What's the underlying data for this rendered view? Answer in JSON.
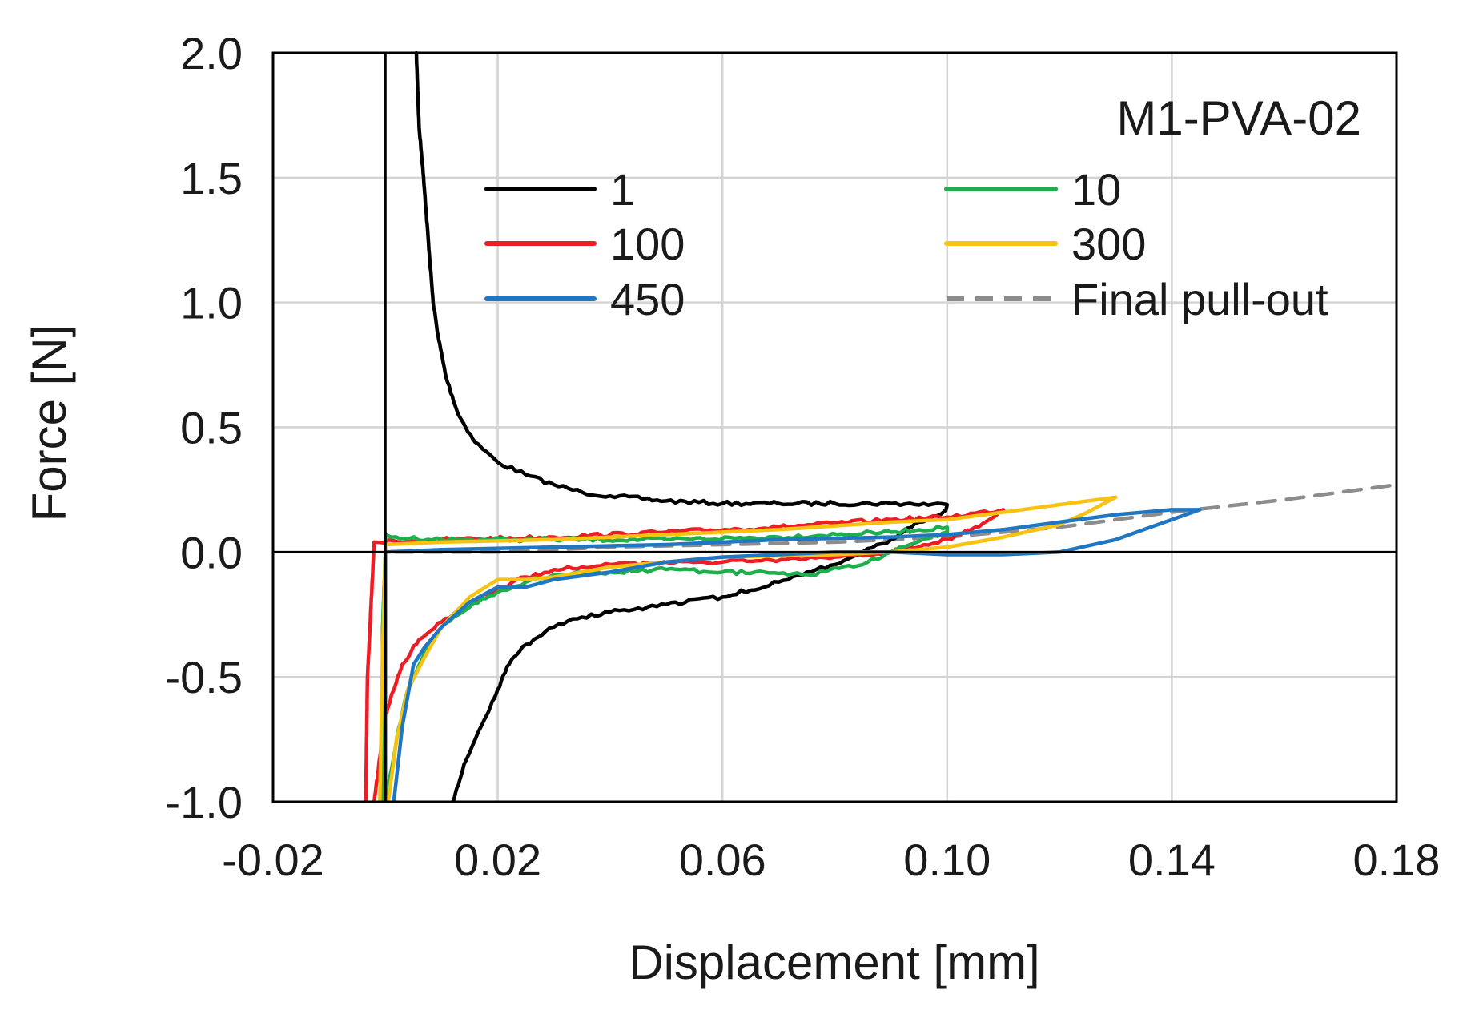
{
  "chart_data": {
    "type": "line",
    "title": "M1-PVA-02",
    "xlabel": "Displacement [mm]",
    "ylabel": "Force [N]",
    "xlim": [
      -0.02,
      0.18
    ],
    "ylim": [
      -1.0,
      2.0
    ],
    "grid": true,
    "legend_position": "upper-right",
    "x_ticks": [
      -0.02,
      0.02,
      0.06,
      0.1,
      0.14,
      0.18
    ],
    "x_tick_labels": [
      "-0.02",
      "0.02",
      "0.06",
      "0.10",
      "0.14",
      "0.18"
    ],
    "y_ticks": [
      -1.0,
      -0.5,
      0.0,
      0.5,
      1.0,
      1.5,
      2.0
    ],
    "y_tick_labels": [
      "-1.0",
      "-0.5",
      "0.0",
      "0.5",
      "1.0",
      "1.5",
      "2.0"
    ],
    "series": [
      {
        "name": "1",
        "color": "#000000",
        "dash": "solid",
        "noisy": true,
        "points": [
          [
            0.0055,
            2.0
          ],
          [
            0.006,
            1.7
          ],
          [
            0.0068,
            1.5
          ],
          [
            0.0078,
            1.2
          ],
          [
            0.0085,
            1.0
          ],
          [
            0.0095,
            0.85
          ],
          [
            0.0108,
            0.7
          ],
          [
            0.013,
            0.55
          ],
          [
            0.016,
            0.44
          ],
          [
            0.02,
            0.36
          ],
          [
            0.025,
            0.31
          ],
          [
            0.03,
            0.27
          ],
          [
            0.035,
            0.24
          ],
          [
            0.04,
            0.225
          ],
          [
            0.05,
            0.205
          ],
          [
            0.06,
            0.195
          ],
          [
            0.07,
            0.195
          ],
          [
            0.08,
            0.195
          ],
          [
            0.09,
            0.195
          ],
          [
            0.1,
            0.19
          ],
          [
            0.0998,
            0.17
          ],
          [
            0.095,
            0.12
          ],
          [
            0.09,
            0.05
          ],
          [
            0.085,
            0.0
          ],
          [
            0.08,
            -0.05
          ],
          [
            0.07,
            -0.12
          ],
          [
            0.06,
            -0.18
          ],
          [
            0.05,
            -0.21
          ],
          [
            0.04,
            -0.24
          ],
          [
            0.035,
            -0.26
          ],
          [
            0.03,
            -0.3
          ],
          [
            0.025,
            -0.37
          ],
          [
            0.022,
            -0.45
          ],
          [
            0.02,
            -0.55
          ],
          [
            0.017,
            -0.7
          ],
          [
            0.014,
            -0.85
          ],
          [
            0.012,
            -1.0
          ]
        ]
      },
      {
        "name": "10",
        "color": "#1fae4b",
        "dash": "solid",
        "noisy": true,
        "points": [
          [
            -0.0005,
            -1.0
          ],
          [
            -0.0005,
            -0.3
          ],
          [
            0.0,
            0.0
          ],
          [
            0.0,
            0.07
          ],
          [
            0.001,
            0.06
          ],
          [
            0.01,
            0.05
          ],
          [
            0.03,
            0.05
          ],
          [
            0.05,
            0.05
          ],
          [
            0.07,
            0.06
          ],
          [
            0.09,
            0.08
          ],
          [
            0.1,
            0.1
          ],
          [
            0.1,
            0.08
          ],
          [
            0.09,
            0.0
          ],
          [
            0.085,
            -0.05
          ],
          [
            0.075,
            -0.09
          ],
          [
            0.06,
            -0.08
          ],
          [
            0.05,
            -0.07
          ],
          [
            0.04,
            -0.08
          ],
          [
            0.03,
            -0.09
          ],
          [
            0.025,
            -0.12
          ],
          [
            0.02,
            -0.16
          ],
          [
            0.015,
            -0.22
          ],
          [
            0.01,
            -0.3
          ],
          [
            0.007,
            -0.4
          ],
          [
            0.004,
            -0.55
          ],
          [
            0.002,
            -0.75
          ],
          [
            0.0,
            -1.0
          ]
        ]
      },
      {
        "name": "100",
        "color": "#ee1c24",
        "dash": "solid",
        "noisy": true,
        "points": [
          [
            -0.0035,
            -1.0
          ],
          [
            -0.0032,
            -0.5
          ],
          [
            -0.002,
            0.04
          ],
          [
            0.01,
            0.05
          ],
          [
            0.03,
            0.06
          ],
          [
            0.05,
            0.08
          ],
          [
            0.07,
            0.1
          ],
          [
            0.09,
            0.13
          ],
          [
            0.1,
            0.14
          ],
          [
            0.11,
            0.17
          ],
          [
            0.105,
            0.1
          ],
          [
            0.1,
            0.05
          ],
          [
            0.09,
            0.0
          ],
          [
            0.08,
            -0.02
          ],
          [
            0.06,
            -0.04
          ],
          [
            0.04,
            -0.05
          ],
          [
            0.03,
            -0.07
          ],
          [
            0.025,
            -0.1
          ],
          [
            0.02,
            -0.15
          ],
          [
            0.015,
            -0.2
          ],
          [
            0.01,
            -0.28
          ],
          [
            0.006,
            -0.35
          ],
          [
            0.003,
            -0.45
          ],
          [
            0.0,
            -0.65
          ],
          [
            -0.002,
            -1.0
          ]
        ]
      },
      {
        "name": "300",
        "color": "#f8c210",
        "dash": "solid",
        "noisy": false,
        "points": [
          [
            -0.001,
            -1.0
          ],
          [
            -0.0005,
            -0.4
          ],
          [
            0.0,
            0.0
          ],
          [
            0.0,
            0.03
          ],
          [
            0.01,
            0.04
          ],
          [
            0.03,
            0.05
          ],
          [
            0.05,
            0.07
          ],
          [
            0.07,
            0.09
          ],
          [
            0.09,
            0.12
          ],
          [
            0.1,
            0.13
          ],
          [
            0.11,
            0.16
          ],
          [
            0.12,
            0.19
          ],
          [
            0.13,
            0.22
          ],
          [
            0.125,
            0.16
          ],
          [
            0.12,
            0.11
          ],
          [
            0.11,
            0.06
          ],
          [
            0.1,
            0.02
          ],
          [
            0.09,
            0.0
          ],
          [
            0.08,
            -0.01
          ],
          [
            0.06,
            -0.02
          ],
          [
            0.04,
            -0.06
          ],
          [
            0.03,
            -0.1
          ],
          [
            0.025,
            -0.11
          ],
          [
            0.02,
            -0.11
          ],
          [
            0.015,
            -0.18
          ],
          [
            0.01,
            -0.3
          ],
          [
            0.007,
            -0.42
          ],
          [
            0.004,
            -0.55
          ],
          [
            0.002,
            -0.75
          ],
          [
            0.0005,
            -1.0
          ]
        ]
      },
      {
        "name": "450",
        "color": "#1f77c4",
        "dash": "solid",
        "noisy": false,
        "points": [
          [
            0.0,
            -1.0
          ],
          [
            0.0,
            -0.2
          ],
          [
            0.0,
            0.0
          ],
          [
            0.01,
            0.01
          ],
          [
            0.03,
            0.02
          ],
          [
            0.05,
            0.03
          ],
          [
            0.07,
            0.05
          ],
          [
            0.09,
            0.06
          ],
          [
            0.1,
            0.07
          ],
          [
            0.11,
            0.09
          ],
          [
            0.12,
            0.12
          ],
          [
            0.13,
            0.15
          ],
          [
            0.14,
            0.17
          ],
          [
            0.145,
            0.17
          ],
          [
            0.14,
            0.13
          ],
          [
            0.135,
            0.09
          ],
          [
            0.13,
            0.05
          ],
          [
            0.12,
            0.0
          ],
          [
            0.11,
            -0.01
          ],
          [
            0.1,
            -0.01
          ],
          [
            0.09,
            0.0
          ],
          [
            0.08,
            0.0
          ],
          [
            0.07,
            -0.01
          ],
          [
            0.06,
            -0.02
          ],
          [
            0.05,
            -0.04
          ],
          [
            0.04,
            -0.08
          ],
          [
            0.03,
            -0.11
          ],
          [
            0.025,
            -0.14
          ],
          [
            0.02,
            -0.14
          ],
          [
            0.015,
            -0.2
          ],
          [
            0.01,
            -0.3
          ],
          [
            0.007,
            -0.38
          ],
          [
            0.005,
            -0.45
          ],
          [
            0.003,
            -0.7
          ],
          [
            0.0015,
            -1.0
          ]
        ]
      },
      {
        "name": "Final pull-out",
        "color": "#8c8c8c",
        "dash": "dashed",
        "noisy": false,
        "points": [
          [
            0.0,
            -1.0
          ],
          [
            0.0,
            0.0
          ],
          [
            0.02,
            0.0
          ],
          [
            0.04,
            0.02
          ],
          [
            0.06,
            0.03
          ],
          [
            0.08,
            0.04
          ],
          [
            0.1,
            0.06
          ],
          [
            0.12,
            0.1
          ],
          [
            0.14,
            0.16
          ],
          [
            0.16,
            0.21
          ],
          [
            0.18,
            0.27
          ]
        ]
      }
    ],
    "legend": {
      "left": [
        {
          "label": "1",
          "color": "#000000",
          "dash": "solid"
        },
        {
          "label": "100",
          "color": "#ee1c24",
          "dash": "solid"
        },
        {
          "label": "450",
          "color": "#1f77c4",
          "dash": "solid"
        }
      ],
      "right": [
        {
          "label": "10",
          "color": "#1fae4b",
          "dash": "solid"
        },
        {
          "label": "300",
          "color": "#f8c210",
          "dash": "solid"
        },
        {
          "label": "Final pull-out",
          "color": "#8c8c8c",
          "dash": "dashed"
        }
      ]
    }
  }
}
